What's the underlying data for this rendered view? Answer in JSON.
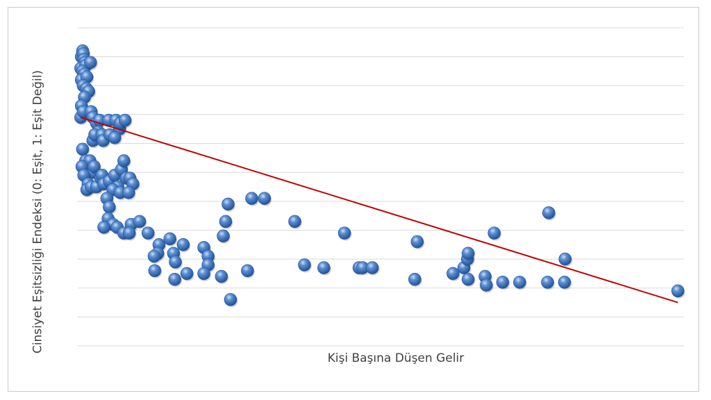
{
  "chart_data": {
    "type": "scatter",
    "title": "",
    "xlabel": "Kişi Başına Düşen Gelir",
    "ylabel": "Cinsiyet Eşitsizliği Endeksi (0: Eşit, 1: Eşit Değil)",
    "xlim": [
      0,
      100
    ],
    "ylim": [
      0,
      11
    ],
    "grid": true,
    "series": [
      {
        "marker_color": "#3f6fb8",
        "points": [
          [
            0.8,
            10.2
          ],
          [
            0.6,
            10.0
          ],
          [
            0.9,
            10.1
          ],
          [
            1.0,
            9.9
          ],
          [
            1.2,
            9.8
          ],
          [
            0.5,
            9.6
          ],
          [
            1.3,
            9.7
          ],
          [
            0.8,
            9.5
          ],
          [
            1.1,
            9.4
          ],
          [
            0.6,
            9.2
          ],
          [
            1.5,
            9.3
          ],
          [
            2.1,
            9.8
          ],
          [
            0.9,
            9.0
          ],
          [
            1.4,
            8.9
          ],
          [
            1.8,
            8.8
          ],
          [
            1.1,
            8.6
          ],
          [
            0.6,
            8.3
          ],
          [
            0.5,
            7.9
          ],
          [
            0.9,
            8.1
          ],
          [
            2.2,
            8.1
          ],
          [
            2.5,
            7.9
          ],
          [
            3.1,
            7.7
          ],
          [
            3.6,
            7.8
          ],
          [
            3.4,
            7.4
          ],
          [
            2.5,
            7.1
          ],
          [
            2.8,
            7.3
          ],
          [
            4.0,
            7.3
          ],
          [
            4.2,
            7.1
          ],
          [
            5.1,
            7.8
          ],
          [
            6.3,
            7.8
          ],
          [
            6.9,
            7.5
          ],
          [
            5.3,
            7.3
          ],
          [
            6.1,
            7.2
          ],
          [
            7.0,
            7.7
          ],
          [
            7.8,
            7.8
          ],
          [
            0.8,
            6.8
          ],
          [
            1.3,
            6.4
          ],
          [
            2.0,
            6.4
          ],
          [
            2.5,
            6.0
          ],
          [
            0.7,
            6.2
          ],
          [
            1.0,
            5.9
          ],
          [
            1.7,
            5.6
          ],
          [
            1.5,
            5.4
          ],
          [
            2.2,
            5.5
          ],
          [
            3.1,
            5.5
          ],
          [
            3.8,
            5.8
          ],
          [
            2.7,
            6.2
          ],
          [
            4.0,
            5.9
          ],
          [
            4.3,
            5.6
          ],
          [
            5.2,
            5.7
          ],
          [
            6.1,
            5.9
          ],
          [
            7.2,
            6.1
          ],
          [
            8.0,
            5.8
          ],
          [
            8.6,
            5.8
          ],
          [
            6.6,
            5.5
          ],
          [
            5.8,
            5.4
          ],
          [
            7.6,
            6.4
          ],
          [
            9.1,
            5.6
          ],
          [
            4.8,
            5.1
          ],
          [
            5.2,
            4.8
          ],
          [
            7.0,
            5.3
          ],
          [
            8.4,
            5.3
          ],
          [
            5.0,
            4.4
          ],
          [
            5.8,
            4.2
          ],
          [
            6.5,
            4.1
          ],
          [
            4.3,
            4.1
          ],
          [
            8.8,
            4.2
          ],
          [
            10.2,
            4.3
          ],
          [
            7.6,
            3.9
          ],
          [
            8.5,
            3.9
          ],
          [
            11.6,
            3.9
          ],
          [
            15.2,
            3.7
          ],
          [
            13.4,
            3.5
          ],
          [
            17.4,
            3.5
          ],
          [
            20.8,
            3.4
          ],
          [
            21.5,
            3.1
          ],
          [
            13.2,
            3.2
          ],
          [
            12.6,
            3.1
          ],
          [
            15.8,
            3.2
          ],
          [
            16.1,
            2.9
          ],
          [
            21.5,
            2.8
          ],
          [
            12.7,
            2.6
          ],
          [
            18.0,
            2.5
          ],
          [
            16.0,
            2.3
          ],
          [
            20.8,
            2.5
          ],
          [
            23.7,
            2.4
          ],
          [
            28.0,
            2.6
          ],
          [
            28.7,
            5.1
          ],
          [
            24.0,
            3.8
          ],
          [
            24.4,
            4.3
          ],
          [
            24.8,
            4.9
          ],
          [
            30.8,
            5.1
          ],
          [
            35.8,
            4.3
          ],
          [
            44.0,
            3.9
          ],
          [
            37.4,
            2.8
          ],
          [
            40.6,
            2.7
          ],
          [
            46.4,
            2.7
          ],
          [
            47.0,
            2.7
          ],
          [
            48.6,
            2.7
          ],
          [
            55.6,
            2.3
          ],
          [
            56.0,
            3.6
          ],
          [
            25.2,
            1.6
          ],
          [
            61.9,
            2.5
          ],
          [
            63.7,
            2.7
          ],
          [
            64.3,
            3.0
          ],
          [
            64.4,
            3.2
          ],
          [
            64.4,
            2.3
          ],
          [
            67.2,
            2.4
          ],
          [
            67.4,
            2.1
          ],
          [
            68.7,
            3.9
          ],
          [
            70.1,
            2.2
          ],
          [
            72.9,
            2.2
          ],
          [
            77.5,
            2.2
          ],
          [
            77.7,
            4.6
          ],
          [
            80.3,
            2.2
          ],
          [
            80.4,
            3.0
          ],
          [
            99.0,
            1.9
          ]
        ]
      }
    ],
    "trendline": {
      "x": [
        0.5,
        99.0
      ],
      "y": [
        7.9,
        1.5
      ],
      "color": "#c00000"
    }
  }
}
